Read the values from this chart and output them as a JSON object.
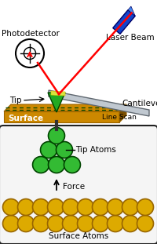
{
  "bg_color": "#ffffff",
  "surface_color": "#cc8800",
  "surface_dark": "#9a6400",
  "surface_darker": "#7a4e00",
  "cantilever_color": "#c0c8d0",
  "cantilever_edge": "#606870",
  "tip_color": "#22aa22",
  "tip_edge": "#004400",
  "atom_green": "#33bb33",
  "atom_green_dark": "#004400",
  "atom_gold": "#ddaa00",
  "atom_gold_dark": "#996600",
  "laser_blue": "#1144cc",
  "laser_blue_light": "#4488ee",
  "red_beam": "#ff0000",
  "labels": {
    "photodetector": "Photodetector",
    "laser_beam": "Laser Beam",
    "cantilever": "Cantilever",
    "tip": "Tip",
    "line_scan": "Line Scan",
    "surface": "Surface",
    "tip_atoms": "Tip Atoms",
    "force": "Force",
    "surface_atoms": "Surface Atoms"
  },
  "fig_width": 2.0,
  "fig_height": 3.11,
  "dpi": 100
}
